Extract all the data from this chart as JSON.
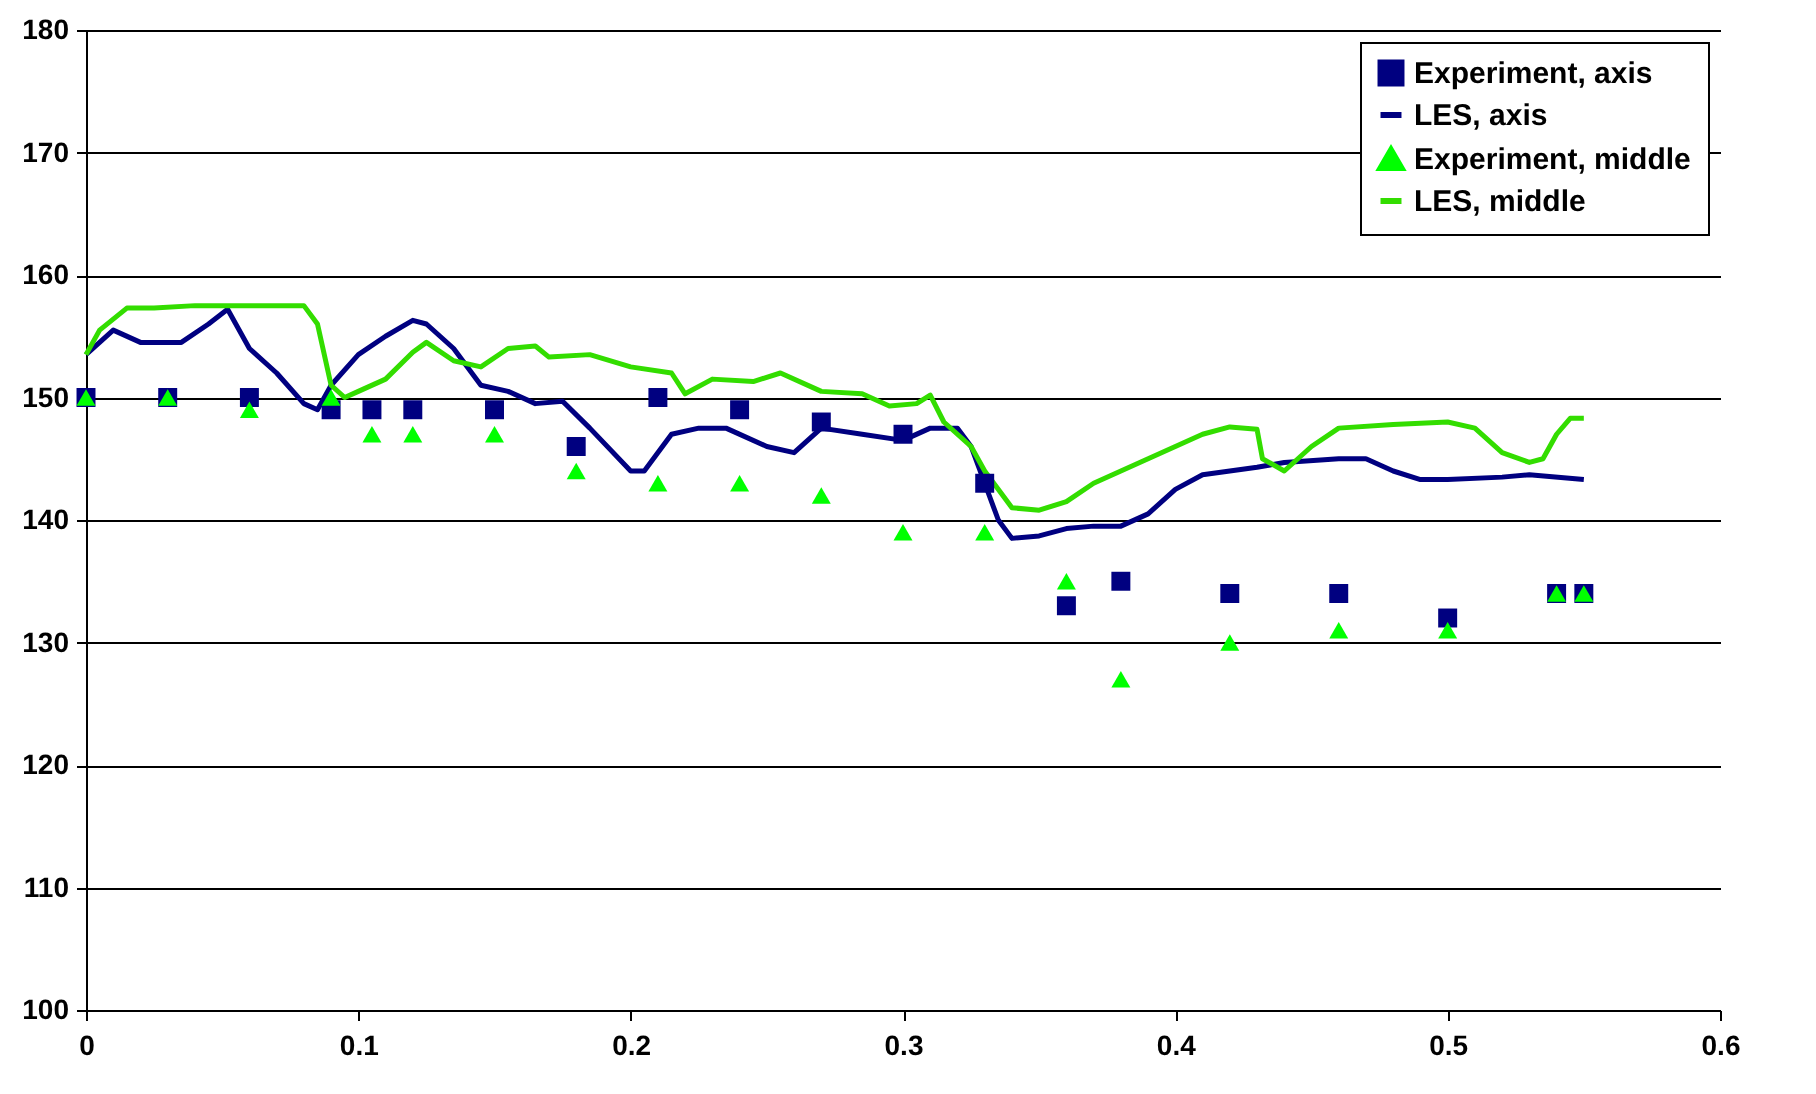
{
  "chart_data": {
    "type": "line",
    "xlim": [
      0,
      0.6
    ],
    "ylim": [
      100,
      180
    ],
    "xticks": [
      0,
      0.1,
      0.2,
      0.3,
      0.4,
      0.5,
      0.6
    ],
    "yticks": [
      100,
      110,
      120,
      130,
      140,
      150,
      160,
      170,
      180
    ],
    "grid": "y",
    "legend": "top right",
    "series": [
      {
        "name": "Experiment, axis",
        "type": "scatter",
        "marker": "square",
        "color": "#000080",
        "x": [
          0,
          0.03,
          0.06,
          0.09,
          0.105,
          0.12,
          0.15,
          0.18,
          0.21,
          0.24,
          0.27,
          0.3,
          0.33,
          0.36,
          0.38,
          0.42,
          0.46,
          0.5,
          0.54,
          0.55
        ],
        "values": [
          150,
          150,
          150,
          149,
          149,
          149,
          149,
          146,
          150,
          149,
          148,
          147,
          143,
          133,
          135,
          134,
          134,
          132,
          134,
          134
        ]
      },
      {
        "name": "LES, axis",
        "color": "#000080",
        "x": [
          0,
          0.01,
          0.02,
          0.035,
          0.045,
          0.052,
          0.06,
          0.07,
          0.08,
          0.085,
          0.09,
          0.1,
          0.11,
          0.12,
          0.125,
          0.135,
          0.145,
          0.155,
          0.165,
          0.175,
          0.185,
          0.2,
          0.205,
          0.215,
          0.225,
          0.235,
          0.25,
          0.26,
          0.27,
          0.285,
          0.3,
          0.31,
          0.32,
          0.325,
          0.33,
          0.335,
          0.34,
          0.35,
          0.36,
          0.37,
          0.38,
          0.39,
          0.4,
          0.41,
          0.42,
          0.43,
          0.44,
          0.46,
          0.47,
          0.48,
          0.49,
          0.5,
          0.52,
          0.53,
          0.55
        ],
        "values": [
          153.5,
          155.5,
          154.5,
          154.5,
          156,
          157.2,
          154,
          152,
          149.5,
          149,
          151,
          153.5,
          155,
          156.3,
          156,
          154,
          151,
          150.5,
          149.5,
          149.7,
          147.5,
          144,
          144,
          147,
          147.5,
          147.5,
          146,
          145.5,
          147.5,
          147,
          146.5,
          147.5,
          147.5,
          146,
          143,
          140,
          138.5,
          138.7,
          139.3,
          139.5,
          139.5,
          140.5,
          142.5,
          143.7,
          144,
          144.3,
          144.7,
          145,
          145,
          144,
          143.3,
          143.3,
          143.5,
          143.7,
          143.3
        ]
      },
      {
        "name": "Experiment, middle",
        "type": "scatter",
        "marker": "triangle",
        "color": "#00ff00",
        "x": [
          0,
          0.03,
          0.06,
          0.09,
          0.105,
          0.12,
          0.15,
          0.18,
          0.21,
          0.24,
          0.27,
          0.3,
          0.33,
          0.36,
          0.38,
          0.42,
          0.46,
          0.5,
          0.54,
          0.55
        ],
        "values": [
          150,
          150,
          149,
          150,
          147,
          147,
          147,
          144,
          143,
          143,
          142,
          139,
          139,
          135,
          127,
          130,
          131,
          131,
          134,
          134
        ]
      },
      {
        "name": "LES, middle",
        "color": "#33dd00",
        "x": [
          0,
          0.005,
          0.015,
          0.025,
          0.04,
          0.06,
          0.08,
          0.085,
          0.09,
          0.095,
          0.1,
          0.11,
          0.12,
          0.125,
          0.135,
          0.145,
          0.155,
          0.165,
          0.17,
          0.185,
          0.2,
          0.215,
          0.22,
          0.23,
          0.245,
          0.255,
          0.27,
          0.285,
          0.295,
          0.305,
          0.31,
          0.315,
          0.325,
          0.33,
          0.34,
          0.35,
          0.36,
          0.37,
          0.38,
          0.39,
          0.4,
          0.41,
          0.42,
          0.43,
          0.432,
          0.44,
          0.45,
          0.46,
          0.48,
          0.5,
          0.51,
          0.52,
          0.53,
          0.535,
          0.54,
          0.545,
          0.55
        ],
        "values": [
          153.5,
          155.5,
          157.3,
          157.3,
          157.5,
          157.5,
          157.5,
          156,
          151,
          150,
          150.5,
          151.5,
          153.7,
          154.5,
          153,
          152.5,
          154,
          154.2,
          153.3,
          153.5,
          152.5,
          152,
          150.3,
          151.5,
          151.3,
          152,
          150.5,
          150.3,
          149.3,
          149.5,
          150.2,
          148,
          146,
          144,
          141,
          140.8,
          141.5,
          143,
          144,
          145,
          146,
          147,
          147.6,
          147.4,
          145,
          144,
          146,
          147.5,
          147.8,
          148,
          147.5,
          145.5,
          144.7,
          145,
          147,
          148.3,
          148.3
        ]
      }
    ]
  }
}
